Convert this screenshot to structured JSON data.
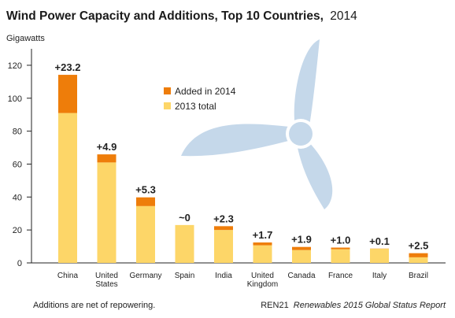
{
  "chart_data": {
    "type": "bar",
    "title": "Wind Power Capacity and Additions, Top 10 Countries,",
    "title_year": "2014",
    "ylabel": "Gigawatts",
    "ylim": [
      0,
      130
    ],
    "yticks": [
      0,
      20,
      40,
      60,
      80,
      100,
      120
    ],
    "categories": [
      "China",
      "United States",
      "Germany",
      "Spain",
      "India",
      "United Kingdom",
      "Canada",
      "France",
      "Italy",
      "Brazil"
    ],
    "category_lines": [
      [
        "China"
      ],
      [
        "United",
        "States"
      ],
      [
        "Germany"
      ],
      [
        "Spain"
      ],
      [
        "India"
      ],
      [
        "United",
        "Kingdom"
      ],
      [
        "Canada"
      ],
      [
        "France"
      ],
      [
        "Italy"
      ],
      [
        "Brazil"
      ]
    ],
    "series": [
      {
        "name": "2013 total",
        "color": "#fdd668",
        "values": [
          91.0,
          61.0,
          34.5,
          23.0,
          20.0,
          10.7,
          7.8,
          8.3,
          8.6,
          3.4
        ]
      },
      {
        "name": "Added in 2014",
        "color": "#ee7d0a",
        "values": [
          23.2,
          4.9,
          5.3,
          0,
          2.3,
          1.7,
          1.9,
          1.0,
          0.1,
          2.5
        ]
      }
    ],
    "data_labels": [
      "+23.2",
      "+4.9",
      "+5.3",
      "~0",
      "+2.3",
      "+1.7",
      "+1.9",
      "+1.0",
      "+0.1",
      "+2.5"
    ],
    "legend": {
      "placement": "top-center",
      "entries": [
        "Added in 2014",
        "2013 total"
      ]
    },
    "grid": false
  },
  "footer": {
    "note": "Additions are net of repowering.",
    "source_org": "REN21",
    "source_title": "Renewables 2015 Global Status Report"
  },
  "colors": {
    "turbine": "#c5d8ea"
  }
}
